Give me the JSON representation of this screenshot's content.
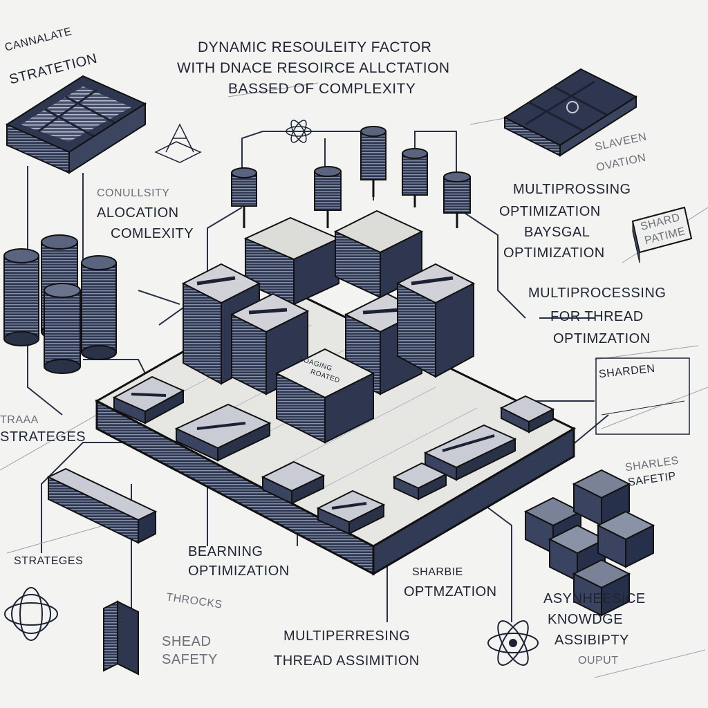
{
  "title": {
    "line1": "DYNAMIC RESOULEITY FACTOR",
    "line2": "WITH DNACE RESOIRCE ALLCTATION",
    "line3": "BASSED OF COMPLEXITY"
  },
  "labels": {
    "top_left": [
      "CANNALATE",
      "STRATETION"
    ],
    "left_mid": [
      "CONULLSITY",
      "ALOCATION",
      "COMLEXITY"
    ],
    "strategies_left": "STRATEGES",
    "strategies_bottom": "STRATEGES",
    "learning": [
      "BEARNING",
      "OPTIMIZATION"
    ],
    "shead": [
      "SHEAD",
      "SAFETY"
    ],
    "bottom_center": [
      "MULTIPERRESING",
      "THREAD ASSIMITION"
    ],
    "sharbie": [
      "SHARBIE",
      "OPTMZATION"
    ],
    "bottom_right": [
      "ASYNHEESICE",
      "KNOWDGE",
      "ASSIBIPTY",
      "OUPUT"
    ],
    "right_1": [
      "SLAVEEN",
      "OVATION"
    ],
    "right_2": [
      "MULTIPROSSING",
      "OPTIMIZATION",
      "BAYSGAL",
      "OPTIMIZATION"
    ],
    "right_3": [
      "MULTIPROCESSING",
      "FOR THREAD",
      "OPTIMZATION"
    ],
    "right_sharden": "SHARDEN",
    "right_safety": [
      "SHARLES",
      "SAFETIP"
    ],
    "shard_card": [
      "SHARD",
      "PATIME"
    ],
    "faint_left": "TRAAA",
    "faint_bottom": "THROCKS",
    "center_chip": [
      "LOAGING",
      "ROATED"
    ]
  },
  "colors": {
    "ink": "#1f2433",
    "navy": "#2b3550",
    "steel": "#4a5570",
    "paper": "#f3f3f1",
    "bright": "#e8e8e6"
  }
}
